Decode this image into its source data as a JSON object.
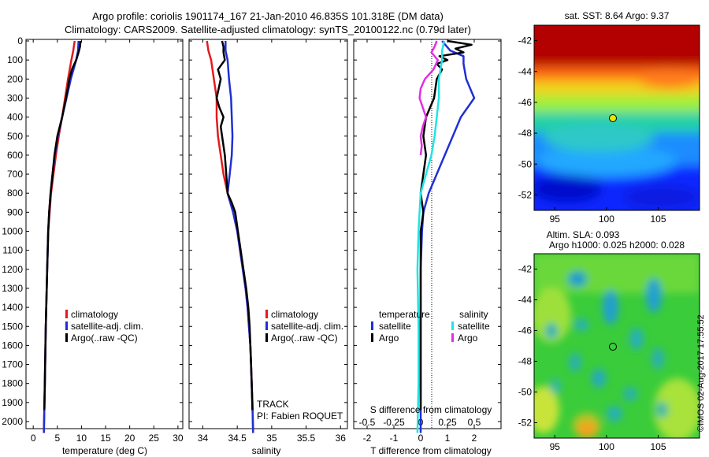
{
  "header": {
    "title_line1": "Argo profile: coriolis 1901174_167 21-Jan-2010 46.835S 101.318E (DM data)",
    "title_line2": "Climatology: CARS2009. Satellite-adjusted climatology: synTS_20100122.nc (0.79d later)"
  },
  "panels": {
    "temperature": {
      "xlabel": "temperature (deg C)"
    },
    "salinity": {
      "xlabel": "salinity",
      "track_label": "TRACK",
      "pi_label": "PI: Fabien ROQUET"
    },
    "difference": {
      "xlabel_top": "S difference from climatology",
      "xlabel_bottom": "T difference from climatology"
    },
    "sst_map": {
      "title": "sat. SST: 8.64  Argo: 9.37"
    },
    "sla_map": {
      "title_line1": "Altim. SLA: 0.093",
      "title_line2": "Argo h1000: 0.025 h2000: 0.028"
    }
  },
  "legend_main": {
    "climatology": "climatology",
    "satellite": "satellite-adj. clim.",
    "argo": "Argo(..raw -QC)"
  },
  "legend_diff": {
    "temperature_head": "temperature",
    "salinity_head": "salinity",
    "satellite": "satellite",
    "argo": "Argo"
  },
  "footer": {
    "credit": "©IMOS 02-Aug-2017 17:55:52"
  },
  "colors": {
    "climatology": "#e41a1c",
    "satellite": "#1f2fd6",
    "argo": "#000000",
    "sat_salinity": "#22e4e4",
    "argo_salinity": "#e22ee2"
  },
  "chart_data": [
    {
      "type": "line",
      "xlabel": "temperature (deg C)",
      "ylabel": "",
      "xlim": [
        -1.5,
        31
      ],
      "ylim": [
        2060,
        0
      ],
      "x_ticks": [
        0,
        5,
        10,
        15,
        20,
        25,
        30
      ],
      "y_ticks": [
        0,
        100,
        200,
        300,
        400,
        500,
        600,
        700,
        800,
        900,
        1000,
        1100,
        1200,
        1300,
        1400,
        1500,
        1600,
        1700,
        1800,
        1900,
        2000
      ],
      "series": [
        {
          "name": "climatology",
          "color": "#e41a1c",
          "depth": [
            0,
            50,
            100,
            200,
            300,
            400,
            500,
            600,
            700,
            800,
            900,
            1000,
            1200,
            1500,
            1800,
            2060
          ],
          "values": [
            8.6,
            8.3,
            7.9,
            7.2,
            6.6,
            6.0,
            5.3,
            4.7,
            4.2,
            3.7,
            3.4,
            3.1,
            2.9,
            2.6,
            2.4,
            2.2
          ]
        },
        {
          "name": "satellite-adj. clim.",
          "color": "#1f2fd6",
          "depth": [
            0,
            50,
            100,
            200,
            300,
            400,
            500,
            600,
            700,
            800,
            900,
            1000,
            1200,
            1500,
            1800,
            2060
          ],
          "values": [
            9.4,
            9.3,
            8.9,
            7.8,
            6.9,
            6.0,
            5.1,
            4.5,
            4.0,
            3.6,
            3.3,
            3.1,
            2.9,
            2.6,
            2.4,
            2.2
          ]
        },
        {
          "name": "Argo(..raw -QC)",
          "color": "#000000",
          "depth": [
            0,
            30,
            60,
            100,
            150,
            200,
            300,
            400,
            500,
            600,
            700,
            800,
            900,
            1000,
            1200,
            1500,
            1800,
            1940
          ],
          "values": [
            9.8,
            9.7,
            9.4,
            8.9,
            8.0,
            7.5,
            6.8,
            6.0,
            5.0,
            4.4,
            4.0,
            3.6,
            3.3,
            3.1,
            2.9,
            2.6,
            2.4,
            2.3
          ]
        }
      ],
      "legend": "bottom-right"
    },
    {
      "type": "line",
      "xlabel": "salinity",
      "ylabel": "",
      "xlim": [
        33.8,
        36.1
      ],
      "ylim": [
        2060,
        0
      ],
      "x_ticks": [
        34,
        34.5,
        35,
        35.5,
        36
      ],
      "series": [
        {
          "name": "climatology",
          "color": "#e41a1c",
          "depth": [
            0,
            50,
            100,
            200,
            300,
            400,
            500,
            600,
            700,
            800,
            900,
            1000,
            1100,
            1200,
            1300,
            1400,
            1500,
            1600,
            1700,
            1800,
            1900,
            2060
          ],
          "values": [
            34.06,
            34.08,
            34.12,
            34.16,
            34.2,
            34.2,
            34.22,
            34.26,
            34.3,
            34.36,
            34.44,
            34.5,
            34.54,
            34.58,
            34.62,
            34.65,
            34.67,
            34.69,
            34.7,
            34.71,
            34.72,
            34.73
          ]
        },
        {
          "name": "satellite-adj. clim.",
          "color": "#1f2fd6",
          "depth": [
            0,
            50,
            100,
            200,
            300,
            400,
            500,
            600,
            700,
            800,
            900,
            1000,
            1100,
            1200,
            1300,
            1400,
            1500,
            1600,
            1700,
            1800,
            1900,
            2060
          ],
          "values": [
            34.33,
            34.33,
            34.36,
            34.38,
            34.41,
            34.42,
            34.43,
            34.42,
            34.39,
            34.36,
            34.44,
            34.5,
            34.54,
            34.58,
            34.62,
            34.65,
            34.67,
            34.69,
            34.7,
            34.71,
            34.72,
            34.73
          ]
        },
        {
          "name": "Argo(..raw -QC)",
          "color": "#000000",
          "depth": [
            0,
            30,
            60,
            100,
            150,
            200,
            250,
            300,
            350,
            400,
            450,
            500,
            600,
            700,
            800,
            850,
            900,
            1000,
            1100,
            1200,
            1300,
            1400,
            1500,
            1600,
            1700,
            1800,
            1940
          ],
          "values": [
            34.28,
            34.3,
            34.3,
            34.32,
            34.22,
            34.26,
            34.23,
            34.2,
            34.24,
            34.3,
            34.26,
            34.28,
            34.32,
            34.34,
            34.36,
            34.42,
            34.47,
            34.51,
            34.55,
            34.59,
            34.63,
            34.66,
            34.68,
            34.69,
            34.7,
            34.71,
            34.72
          ]
        }
      ],
      "legend": "bottom-right"
    },
    {
      "type": "line",
      "xlabel": "T difference from climatology",
      "x2label": "S difference from climatology",
      "ylabel": "",
      "xlim": [
        -2.5,
        3
      ],
      "ylim": [
        2060,
        0
      ],
      "x_ticks": [
        -2,
        -1,
        0,
        1,
        2
      ],
      "x2_ticks": [
        -0.5,
        -0.25,
        0,
        0.25,
        0.5
      ],
      "series": [
        {
          "name": "temperature satellite",
          "color": "#1f2fd6",
          "axis": "T",
          "depth": [
            0,
            50,
            80,
            120,
            200,
            300,
            400,
            500,
            600,
            700,
            800,
            900,
            1000,
            1200,
            1500,
            1800,
            2060
          ],
          "values": [
            0.8,
            1.1,
            1.6,
            1.6,
            1.7,
            2.0,
            1.5,
            1.2,
            0.9,
            0.6,
            0.3,
            0.1,
            0.05,
            0.0,
            0.0,
            0.0,
            0.0
          ]
        },
        {
          "name": "temperature Argo",
          "color": "#000000",
          "depth": [
            0,
            20,
            40,
            60,
            80,
            100,
            120,
            150,
            200,
            300,
            400,
            500,
            600,
            700,
            800,
            900,
            1000,
            1200,
            1500,
            1800,
            1940
          ],
          "values": [
            1.0,
            1.9,
            1.3,
            1.6,
            0.7,
            1.0,
            0.6,
            0.8,
            0.6,
            0.5,
            0.2,
            0.1,
            0.2,
            0.1,
            0.0,
            0.1,
            0.0,
            0.0,
            0.0,
            0.0,
            0.0
          ]
        },
        {
          "name": "salinity satellite",
          "color": "#22e4e4",
          "depth": [
            0,
            50,
            100,
            200,
            300,
            400,
            500,
            600,
            700,
            800,
            900,
            1000,
            1200,
            1500,
            1800,
            2060
          ],
          "values": [
            0.22,
            0.2,
            0.2,
            0.17,
            0.17,
            0.15,
            0.13,
            0.1,
            0.05,
            0.0,
            -0.01,
            -0.02,
            -0.03,
            -0.02,
            -0.02,
            -0.03
          ]
        },
        {
          "name": "salinity Argo",
          "color": "#e22ee2",
          "depth": [
            0,
            30,
            60,
            100,
            150,
            200,
            250,
            300,
            350,
            400,
            450,
            500,
            550,
            600
          ],
          "values": [
            0.15,
            0.13,
            0.1,
            0.16,
            0.12,
            0.04,
            0.0,
            -0.01,
            0.02,
            0.05,
            0.02,
            0.0,
            0.01,
            0.0
          ]
        }
      ],
      "legend": "bottom-right"
    },
    {
      "type": "heatmap",
      "title": "sat. SST: 8.64  Argo: 9.37",
      "xlim": [
        93,
        109
      ],
      "ylim": [
        -53,
        -41
      ],
      "x_ticks": [
        95,
        100,
        105
      ],
      "y_ticks": [
        -42,
        -44,
        -46,
        -48,
        -50,
        -52
      ],
      "marker": {
        "lon": 101.318,
        "lat": -46.835
      },
      "colormap": "jet"
    },
    {
      "type": "heatmap",
      "title": "Altim. SLA: 0.093",
      "xlim": [
        93,
        109
      ],
      "ylim": [
        -53,
        -41
      ],
      "x_ticks": [
        95,
        100,
        105
      ],
      "y_ticks": [
        -42,
        -44,
        -46,
        -48,
        -50,
        -52
      ],
      "marker": {
        "lon": 101.318,
        "lat": -46.835
      },
      "colormap": "jet"
    }
  ]
}
